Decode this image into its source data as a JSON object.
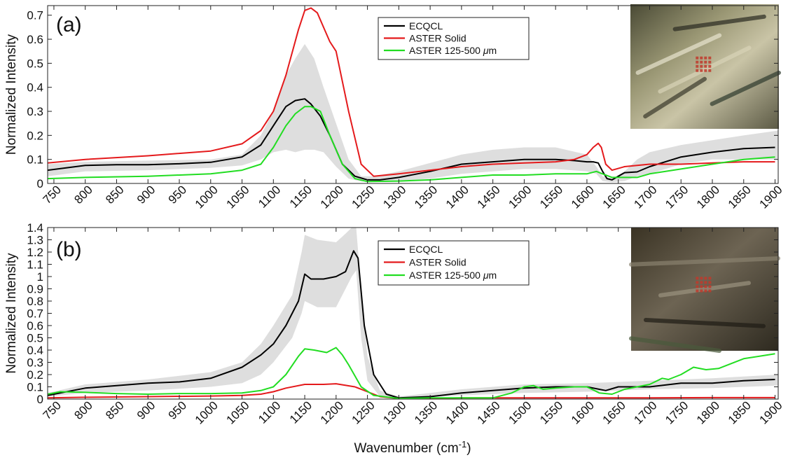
{
  "figure": {
    "xlabel": "Wavenumber (cm",
    "xlabel_sup": "-1",
    "xlabel_end": ")"
  },
  "colors": {
    "ecqcl": "#000000",
    "aster_solid": "#e41a1c",
    "aster_125": "#22dd22",
    "band": "#dedede"
  },
  "chart_data": [
    {
      "type": "line",
      "panel_label": "(a)",
      "ylabel": "Normalized Intensity",
      "xlim": [
        740,
        1905
      ],
      "ylim": [
        0,
        0.74
      ],
      "xticks": [
        750,
        800,
        850,
        900,
        950,
        1000,
        1050,
        1100,
        1150,
        1200,
        1250,
        1300,
        1350,
        1400,
        1450,
        1500,
        1550,
        1600,
        1650,
        1700,
        1750,
        1800,
        1850,
        1900
      ],
      "yticks": [
        0,
        0.1,
        0.2,
        0.3,
        0.4,
        0.5,
        0.6,
        0.7
      ],
      "legend_position": "top-center",
      "inset_image": "satellite-image-with-sample-grid",
      "band": {
        "x": [
          740,
          800,
          900,
          1000,
          1050,
          1080,
          1100,
          1120,
          1135,
          1150,
          1165,
          1180,
          1200,
          1220,
          1240,
          1260,
          1300,
          1350,
          1400,
          1450,
          1500,
          1550,
          1600,
          1615,
          1625,
          1640,
          1660,
          1680,
          1700,
          1750,
          1800,
          1850,
          1905
        ],
        "upper": [
          0.08,
          0.09,
          0.095,
          0.1,
          0.12,
          0.2,
          0.3,
          0.45,
          0.52,
          0.58,
          0.52,
          0.4,
          0.25,
          0.1,
          0.03,
          0.03,
          0.05,
          0.085,
          0.12,
          0.14,
          0.15,
          0.15,
          0.12,
          0.07,
          0.03,
          0.02,
          0.05,
          0.1,
          0.13,
          0.16,
          0.18,
          0.2,
          0.22
        ],
        "lower": [
          0.03,
          0.05,
          0.055,
          0.065,
          0.075,
          0.1,
          0.13,
          0.14,
          0.13,
          0.14,
          0.14,
          0.13,
          0.07,
          0.02,
          0.008,
          0.008,
          0.01,
          0.02,
          0.04,
          0.05,
          0.06,
          0.06,
          0.05,
          0.04,
          0.01,
          0.005,
          0.01,
          0.03,
          0.04,
          0.08,
          0.1,
          0.1,
          0.1
        ]
      },
      "series": [
        {
          "name": "ECQCL",
          "color_key": "ecqcl",
          "x": [
            740,
            800,
            850,
            900,
            950,
            1000,
            1050,
            1080,
            1100,
            1120,
            1135,
            1150,
            1160,
            1175,
            1190,
            1210,
            1230,
            1250,
            1270,
            1300,
            1350,
            1400,
            1450,
            1500,
            1550,
            1580,
            1600,
            1610,
            1618,
            1625,
            1632,
            1640,
            1660,
            1680,
            1700,
            1750,
            1800,
            1850,
            1900
          ],
          "y": [
            0.055,
            0.075,
            0.078,
            0.078,
            0.082,
            0.088,
            0.11,
            0.16,
            0.24,
            0.32,
            0.345,
            0.352,
            0.33,
            0.28,
            0.2,
            0.08,
            0.03,
            0.015,
            0.015,
            0.025,
            0.05,
            0.08,
            0.09,
            0.1,
            0.1,
            0.095,
            0.09,
            0.09,
            0.085,
            0.05,
            0.02,
            0.015,
            0.045,
            0.048,
            0.07,
            0.11,
            0.13,
            0.145,
            0.15
          ]
        },
        {
          "name": "ASTER Solid",
          "color_key": "aster_solid",
          "x": [
            740,
            800,
            900,
            1000,
            1050,
            1080,
            1100,
            1120,
            1140,
            1150,
            1160,
            1170,
            1180,
            1190,
            1200,
            1220,
            1240,
            1260,
            1300,
            1350,
            1400,
            1450,
            1500,
            1550,
            1580,
            1600,
            1610,
            1618,
            1623,
            1630,
            1640,
            1660,
            1700,
            1750,
            1800,
            1850,
            1900
          ],
          "y": [
            0.085,
            0.1,
            0.115,
            0.135,
            0.165,
            0.22,
            0.3,
            0.45,
            0.64,
            0.72,
            0.73,
            0.71,
            0.65,
            0.59,
            0.55,
            0.3,
            0.08,
            0.03,
            0.04,
            0.055,
            0.07,
            0.08,
            0.085,
            0.09,
            0.1,
            0.12,
            0.15,
            0.167,
            0.15,
            0.08,
            0.055,
            0.07,
            0.08,
            0.08,
            0.085,
            0.09,
            0.09
          ]
        },
        {
          "name": "ASTER 125-500 μm",
          "color_key": "aster_125",
          "x": [
            740,
            800,
            900,
            1000,
            1050,
            1080,
            1100,
            1120,
            1135,
            1150,
            1160,
            1175,
            1190,
            1210,
            1230,
            1250,
            1300,
            1350,
            1400,
            1450,
            1500,
            1550,
            1600,
            1615,
            1625,
            1640,
            1660,
            1680,
            1700,
            1750,
            1800,
            1850,
            1900
          ],
          "y": [
            0.02,
            0.025,
            0.03,
            0.04,
            0.055,
            0.08,
            0.15,
            0.24,
            0.29,
            0.32,
            0.32,
            0.3,
            0.2,
            0.08,
            0.02,
            0.008,
            0.01,
            0.015,
            0.025,
            0.035,
            0.035,
            0.04,
            0.04,
            0.05,
            0.04,
            0.025,
            0.025,
            0.025,
            0.04,
            0.06,
            0.08,
            0.1,
            0.11
          ]
        }
      ]
    },
    {
      "type": "line",
      "panel_label": "(b)",
      "ylabel": "Normalized Intensity",
      "xlim": [
        740,
        1905
      ],
      "ylim": [
        0,
        1.4
      ],
      "xticks": [
        750,
        800,
        850,
        900,
        950,
        1000,
        1050,
        1100,
        1150,
        1200,
        1250,
        1300,
        1350,
        1400,
        1450,
        1500,
        1550,
        1600,
        1650,
        1700,
        1750,
        1800,
        1850,
        1900
      ],
      "yticks": [
        0,
        0.1,
        0.2,
        0.3,
        0.4,
        0.5,
        0.6,
        0.7,
        0.8,
        0.9,
        1,
        1.1,
        1.2,
        1.3,
        1.4
      ],
      "legend_position": "top-center",
      "inset_image": "satellite-image-with-sample-grid",
      "band": {
        "x": [
          740,
          800,
          900,
          1000,
          1050,
          1080,
          1100,
          1130,
          1145,
          1150,
          1170,
          1200,
          1215,
          1225,
          1232,
          1240,
          1250,
          1270,
          1300,
          1400,
          1500,
          1600,
          1700,
          1800,
          1905
        ],
        "upper": [
          0.05,
          0.12,
          0.16,
          0.22,
          0.3,
          0.45,
          0.6,
          0.85,
          1.2,
          1.34,
          1.3,
          1.28,
          1.35,
          1.4,
          1.4,
          0.9,
          0.35,
          0.07,
          0.02,
          0.08,
          0.12,
          0.13,
          0.15,
          0.17,
          0.2
        ],
        "lower": [
          0.02,
          0.05,
          0.07,
          0.1,
          0.13,
          0.2,
          0.3,
          0.5,
          0.7,
          0.8,
          0.75,
          0.75,
          0.9,
          1.0,
          1.05,
          0.5,
          0.15,
          0.02,
          0.005,
          0.03,
          0.05,
          0.06,
          0.08,
          0.09,
          0.11
        ]
      },
      "series": [
        {
          "name": "ECQCL",
          "color_key": "ecqcl",
          "x": [
            740,
            800,
            850,
            900,
            950,
            1000,
            1050,
            1080,
            1100,
            1120,
            1140,
            1150,
            1160,
            1180,
            1200,
            1215,
            1228,
            1235,
            1245,
            1260,
            1280,
            1300,
            1350,
            1400,
            1450,
            1500,
            1550,
            1600,
            1630,
            1650,
            1700,
            1750,
            1800,
            1850,
            1900
          ],
          "y": [
            0.03,
            0.09,
            0.11,
            0.13,
            0.14,
            0.17,
            0.26,
            0.36,
            0.45,
            0.6,
            0.8,
            1.02,
            0.98,
            0.98,
            1.0,
            1.04,
            1.21,
            1.15,
            0.6,
            0.2,
            0.04,
            0.01,
            0.02,
            0.05,
            0.07,
            0.09,
            0.1,
            0.1,
            0.07,
            0.1,
            0.1,
            0.13,
            0.13,
            0.15,
            0.16
          ]
        },
        {
          "name": "ASTER Solid",
          "color_key": "aster_solid",
          "x": [
            740,
            800,
            900,
            1000,
            1050,
            1080,
            1100,
            1120,
            1150,
            1180,
            1200,
            1230,
            1250,
            1270,
            1300,
            1350,
            1400,
            1500,
            1600,
            1700,
            1800,
            1900
          ],
          "y": [
            0.01,
            0.015,
            0.02,
            0.025,
            0.03,
            0.04,
            0.06,
            0.09,
            0.12,
            0.12,
            0.125,
            0.1,
            0.06,
            0.02,
            0.005,
            0.005,
            0.01,
            0.01,
            0.01,
            0.01,
            0.012,
            0.012
          ]
        },
        {
          "name": "ASTER 125-500 μm",
          "color_key": "aster_125",
          "x": [
            740,
            760,
            800,
            850,
            900,
            950,
            1000,
            1050,
            1080,
            1100,
            1120,
            1140,
            1150,
            1165,
            1185,
            1200,
            1210,
            1220,
            1240,
            1260,
            1300,
            1350,
            1400,
            1450,
            1480,
            1500,
            1515,
            1530,
            1550,
            1580,
            1600,
            1620,
            1640,
            1660,
            1700,
            1720,
            1730,
            1750,
            1770,
            1790,
            1810,
            1850,
            1900
          ],
          "y": [
            0.04,
            0.06,
            0.055,
            0.045,
            0.04,
            0.045,
            0.045,
            0.05,
            0.07,
            0.1,
            0.2,
            0.35,
            0.41,
            0.4,
            0.38,
            0.42,
            0.36,
            0.28,
            0.1,
            0.03,
            0.005,
            0.01,
            0.01,
            0.01,
            0.05,
            0.1,
            0.11,
            0.08,
            0.09,
            0.1,
            0.1,
            0.05,
            0.04,
            0.08,
            0.12,
            0.17,
            0.16,
            0.2,
            0.26,
            0.24,
            0.25,
            0.33,
            0.37
          ]
        }
      ]
    }
  ]
}
